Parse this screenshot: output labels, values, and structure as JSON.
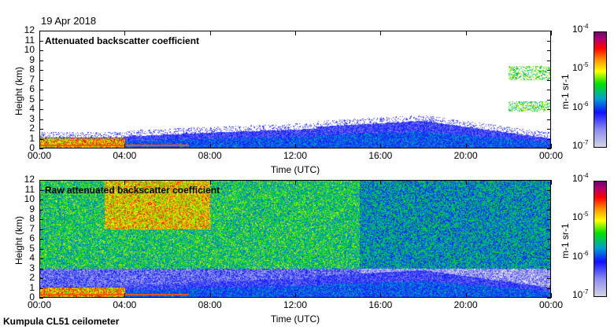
{
  "date": "19 Apr 2018",
  "footer": "Kumpula CL51 ceilometer",
  "chart_data": [
    {
      "type": "heatmap",
      "title": "Attenuated backscatter coefficient",
      "xlabel": "Time (UTC)",
      "ylabel": "Height (km)",
      "xticks": [
        "00:00",
        "04:00",
        "08:00",
        "12:00",
        "16:00",
        "20:00",
        "00:00"
      ],
      "yticks": [
        "0",
        "1",
        "2",
        "3",
        "4",
        "5",
        "6",
        "7",
        "8",
        "9",
        "10",
        "11",
        "12"
      ],
      "ylim": [
        0,
        12
      ],
      "colorbar": {
        "label": "m-1 sr-1",
        "ticks": [
          "10-7",
          "10-6",
          "10-5",
          "10-4"
        ],
        "range": [
          1e-07,
          0.0001
        ],
        "scale": "log"
      }
    },
    {
      "type": "heatmap",
      "title": "Raw attenuated backscatter coefficient",
      "xlabel": "Time (UTC)",
      "ylabel": "Height (km)",
      "xticks": [
        "00:00",
        "04:00",
        "08:00",
        "12:00",
        "16:00",
        "20:00",
        "00:00"
      ],
      "yticks": [
        "0",
        "1",
        "2",
        "3",
        "4",
        "5",
        "6",
        "7",
        "8",
        "9",
        "10",
        "11",
        "12"
      ],
      "ylim": [
        0,
        12
      ],
      "colorbar": {
        "label": "m-1 sr-1",
        "ticks": [
          "10-7",
          "10-6",
          "10-5",
          "10-4"
        ],
        "range": [
          1e-07,
          0.0001
        ],
        "scale": "log"
      }
    }
  ],
  "colors": {
    "low": "#d4d4e4",
    "mid": "#00e000",
    "high": "#700070"
  }
}
